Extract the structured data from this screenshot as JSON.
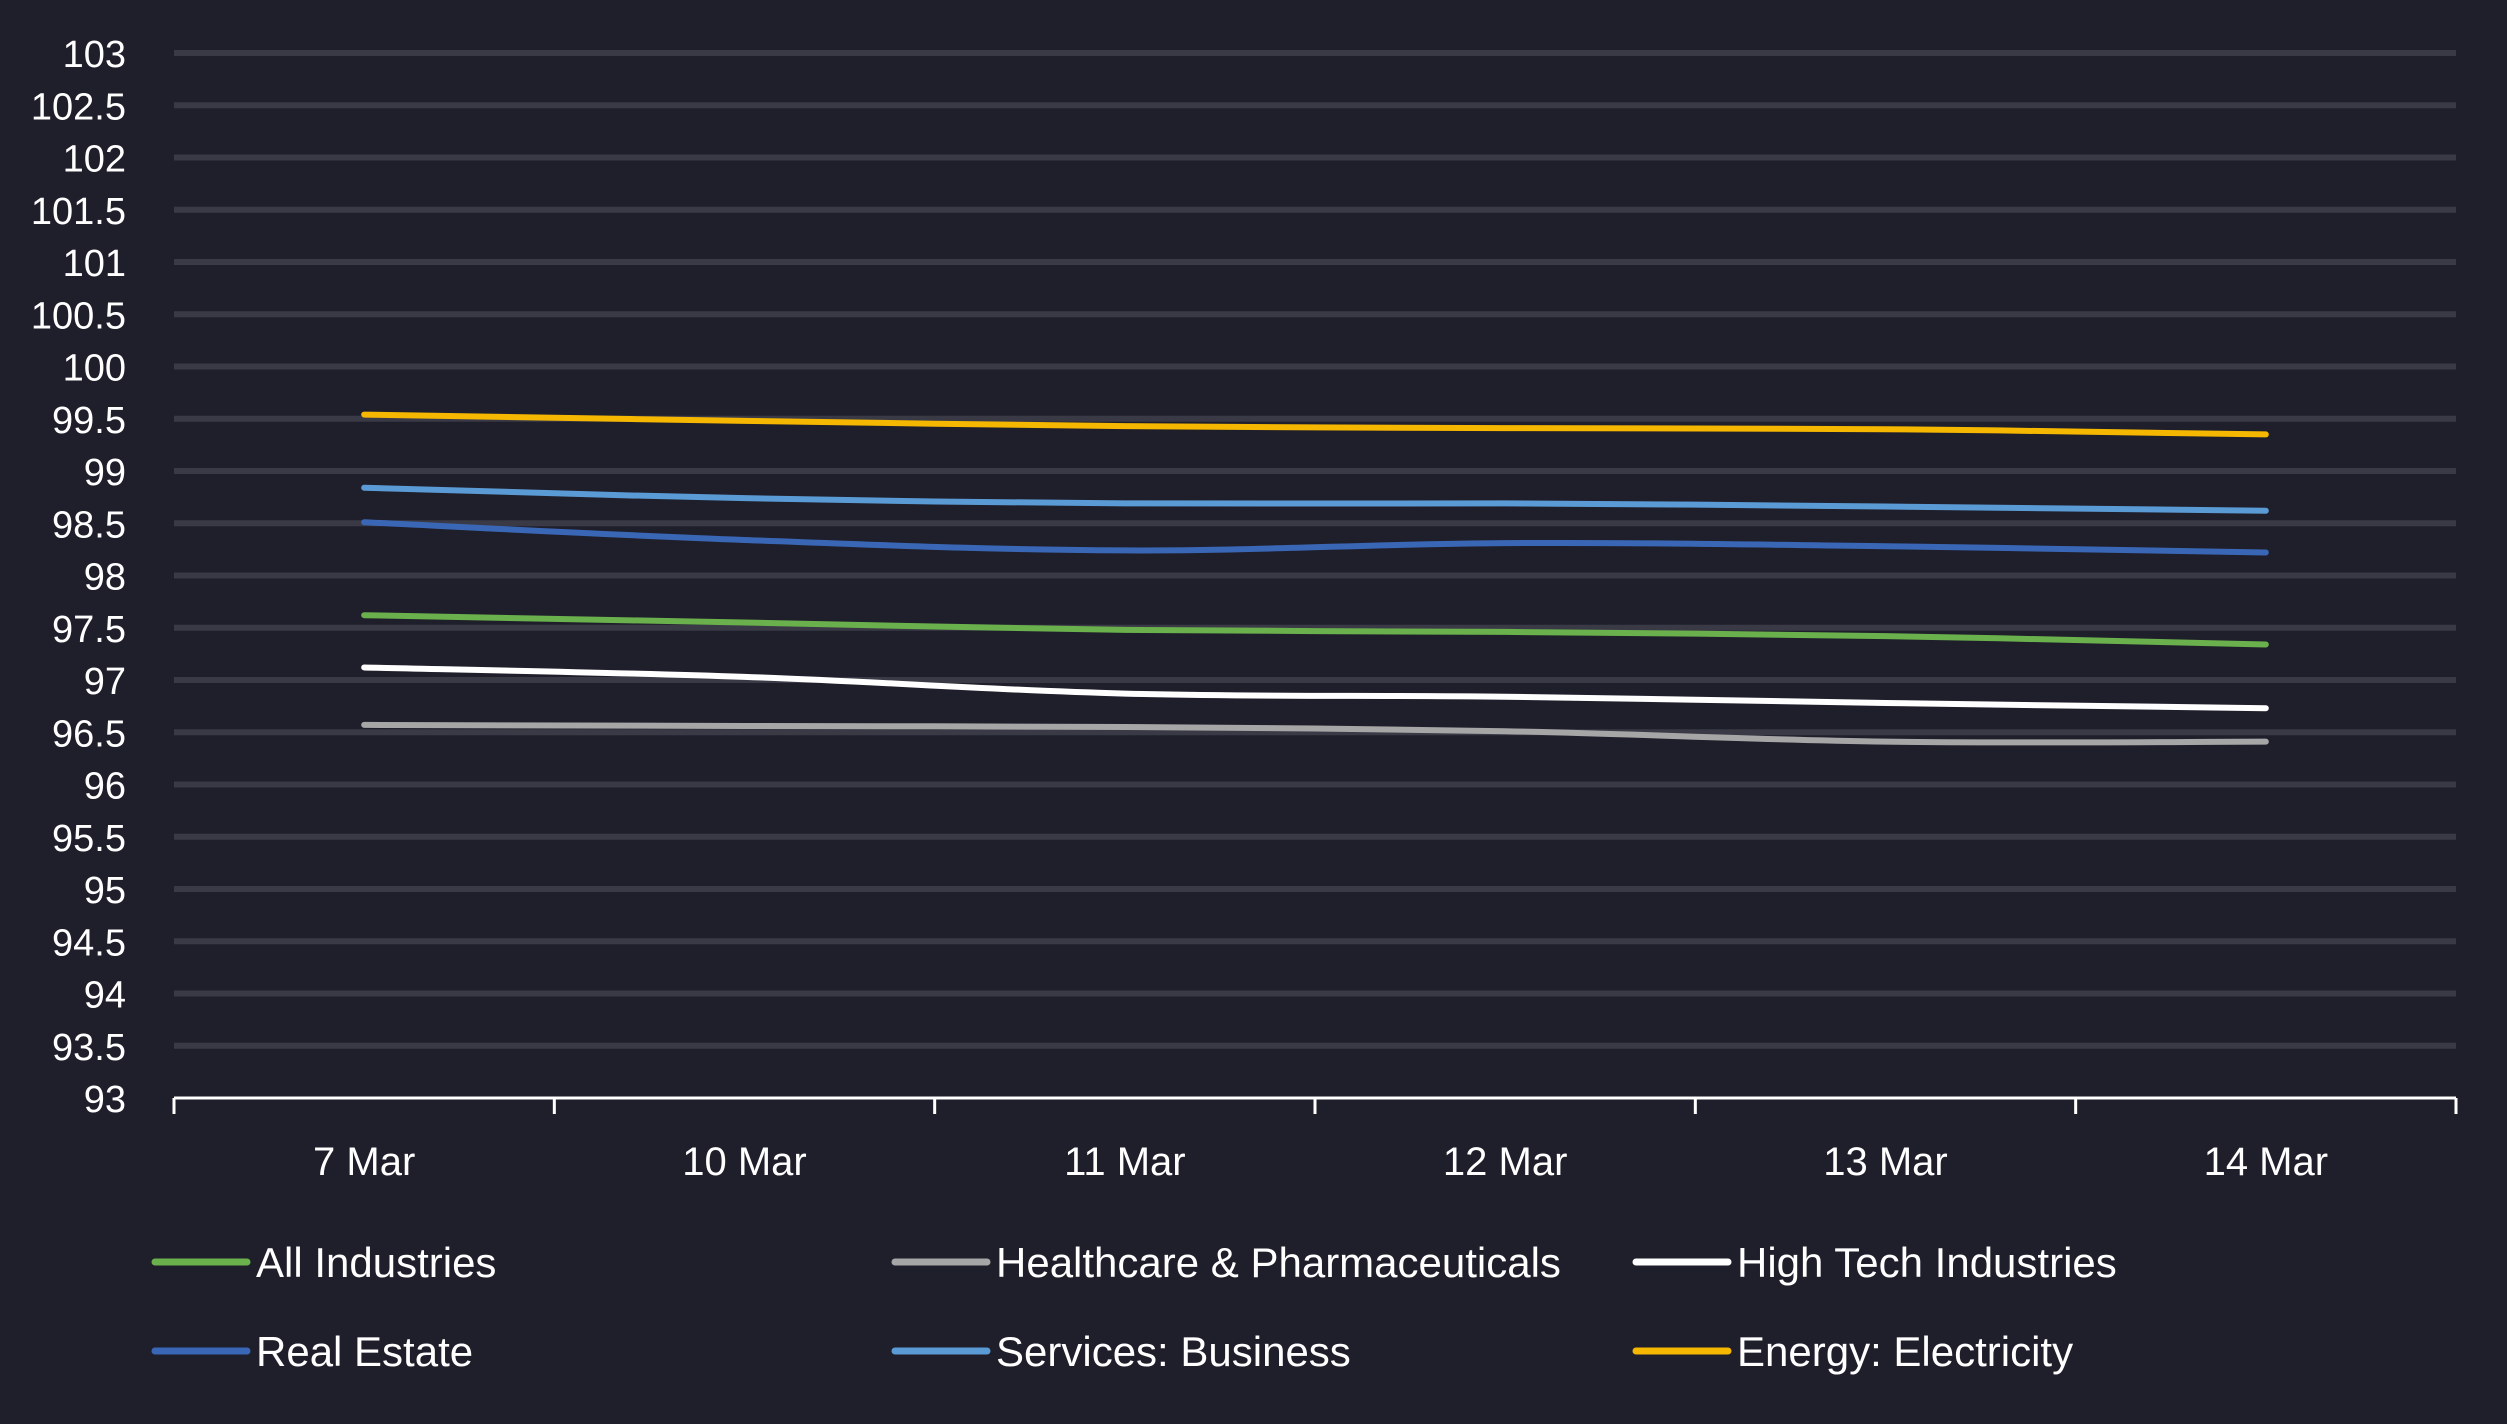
{
  "chart_data": {
    "type": "line",
    "title": "",
    "xlabel": "",
    "ylabel": "",
    "categories": [
      "7 Mar",
      "10 Mar",
      "11 Mar",
      "12 Mar",
      "13 Mar",
      "14 Mar"
    ],
    "ylim": [
      93,
      103
    ],
    "yticks": [
      "93",
      "93.5",
      "94",
      "94.5",
      "95",
      "95.5",
      "96",
      "96.5",
      "97",
      "97.5",
      "98",
      "98.5",
      "99",
      "99.5",
      "100",
      "100.5",
      "101",
      "101.5",
      "102",
      "102.5",
      "103"
    ],
    "grid": true,
    "legend_position": "bottom",
    "colors": {
      "background": "#1f1e2b",
      "gridline": "#3a3a46",
      "axis": "#ffffff",
      "text": "#ffffff"
    },
    "series": [
      {
        "name": "All Industries",
        "color": "#6ab04c",
        "values": [
          97.62,
          97.55,
          97.48,
          97.46,
          97.42,
          97.34
        ]
      },
      {
        "name": "Healthcare & Pharmaceuticals",
        "color": "#a6a6a6",
        "values": [
          96.57,
          96.56,
          96.55,
          96.51,
          96.41,
          96.41
        ]
      },
      {
        "name": "High Tech Industries",
        "color": "#ffffff",
        "values": [
          97.12,
          97.03,
          96.87,
          96.84,
          96.78,
          96.73
        ]
      },
      {
        "name": "Real Estate",
        "color": "#3a67b5",
        "values": [
          98.51,
          98.34,
          98.24,
          98.31,
          98.28,
          98.22
        ]
      },
      {
        "name": "Services: Business",
        "color": "#5b9bd5",
        "values": [
          98.84,
          98.74,
          98.69,
          98.69,
          98.66,
          98.62
        ]
      },
      {
        "name": "Energy: Electricity",
        "color": "#f5b700",
        "values": [
          99.54,
          99.48,
          99.43,
          99.41,
          99.4,
          99.35
        ]
      }
    ]
  }
}
